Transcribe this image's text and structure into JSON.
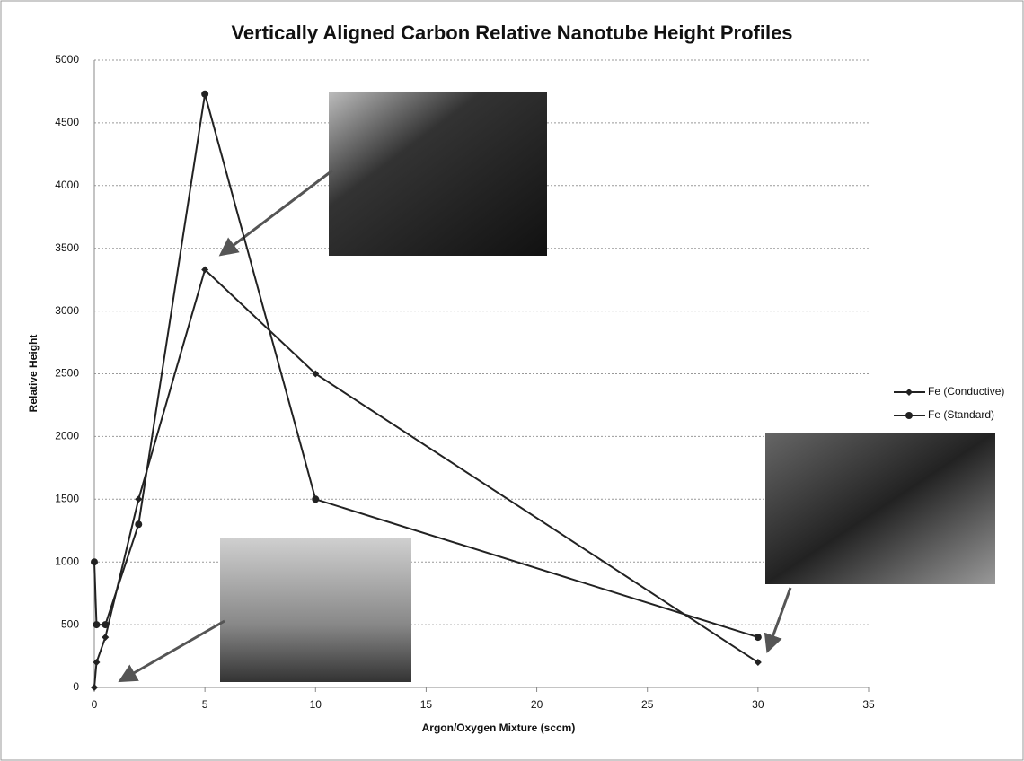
{
  "chart_data": {
    "type": "line",
    "title": "Vertically Aligned Carbon Relative Nanotube Height Profiles",
    "x_label": "Argon/Oxygen Mixture (sccm)",
    "y_label": "Relative Height",
    "x": [
      0,
      0.1,
      0.5,
      2,
      5,
      10,
      30
    ],
    "series": [
      {
        "name": "Fe (Conductive)",
        "color": "#222222",
        "marker": "diamond",
        "values": [
          0,
          200,
          400,
          1500,
          3330,
          2500,
          200
        ]
      },
      {
        "name": "Fe (Standard)",
        "color": "#222222",
        "marker": "circle",
        "values": [
          1000,
          500,
          500,
          1300,
          4730,
          1500,
          400
        ]
      }
    ],
    "xlim": [
      0,
      35
    ],
    "xticks": [
      0,
      5,
      10,
      15,
      20,
      25,
      30,
      35
    ],
    "ylim": [
      0,
      5000
    ],
    "yticks": [
      0,
      500,
      1000,
      1500,
      2000,
      2500,
      3000,
      3500,
      4000,
      4500,
      5000
    ],
    "grid": true,
    "legend": "right"
  }
}
